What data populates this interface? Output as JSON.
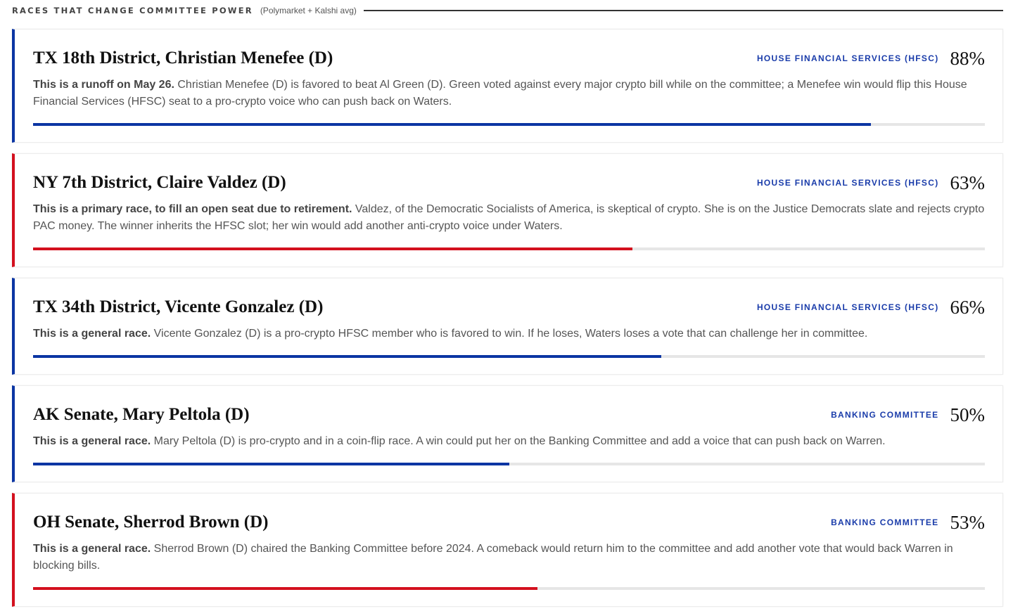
{
  "header": {
    "title": "RACES THAT CHANGE COMMITTEE POWER",
    "subtitle": "(Polymarket + Kalshi avg)"
  },
  "colors": {
    "blue": "#0b35a3",
    "red": "#d3101e"
  },
  "races": [
    {
      "name": "TX 18th District, Christian Menefee (D)",
      "committee": "HOUSE FINANCIAL SERVICES (HFSC)",
      "pct": "88%",
      "value": 88,
      "color": "blue",
      "lead": "This is a runoff on May 26.",
      "text": " Christian Menefee (D) is favored to beat Al Green (D). Green voted against every major crypto bill while on the committee; a Menefee win would flip this House Financial Services (HFSC) seat to a pro-crypto voice who can push back on Waters."
    },
    {
      "name": "NY 7th District, Claire Valdez (D)",
      "committee": "HOUSE FINANCIAL SERVICES (HFSC)",
      "pct": "63%",
      "value": 63,
      "color": "red",
      "lead": "This is a primary race, to fill an open seat due to retirement.",
      "text": " Valdez, of the Democratic Socialists of America, is skeptical of crypto. She is on the Justice Democrats slate and rejects crypto PAC money. The winner inherits the HFSC slot; her win would add another anti-crypto voice under Waters."
    },
    {
      "name": "TX 34th District, Vicente Gonzalez (D)",
      "committee": "HOUSE FINANCIAL SERVICES (HFSC)",
      "pct": "66%",
      "value": 66,
      "color": "blue",
      "lead": "This is a general race.",
      "text": " Vicente Gonzalez (D) is a pro-crypto HFSC member who is favored to win. If he loses, Waters loses a vote that can challenge her in committee."
    },
    {
      "name": "AK Senate, Mary Peltola (D)",
      "committee": "BANKING COMMITTEE",
      "pct": "50%",
      "value": 50,
      "color": "blue",
      "lead": "This is a general race.",
      "text": " Mary Peltola (D) is pro-crypto and in a coin-flip race. A win could put her on the Banking Committee and add a voice that can push back on Warren."
    },
    {
      "name": "OH Senate, Sherrod Brown (D)",
      "committee": "BANKING COMMITTEE",
      "pct": "53%",
      "value": 53,
      "color": "red",
      "lead": "This is a general race.",
      "text": " Sherrod Brown (D) chaired the Banking Committee before 2024. A comeback would return him to the committee and add another vote that would back Warren in blocking bills."
    }
  ]
}
